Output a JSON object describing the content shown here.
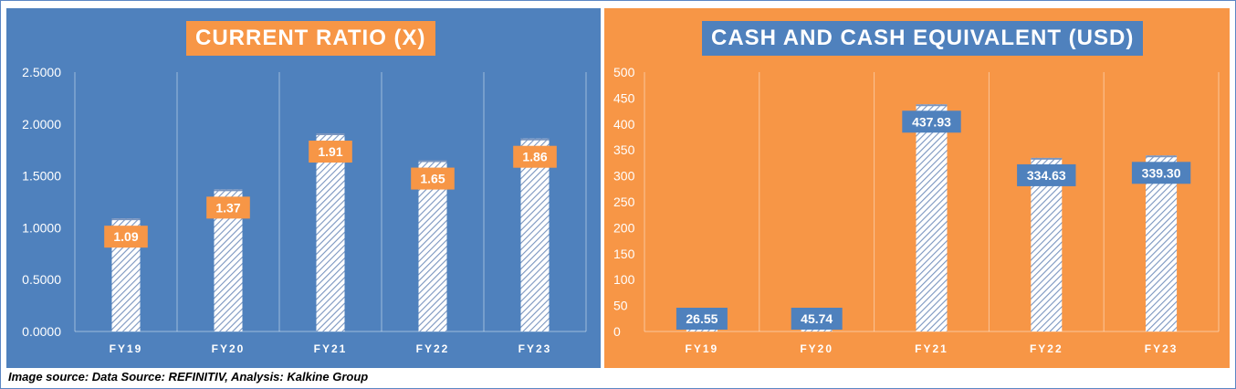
{
  "caption": "Image source: Data Source: REFINITIV, Analysis: Kalkine Group",
  "colors": {
    "blue": "#4f81bd",
    "orange": "#f79646",
    "bar_stripe": "#7a95bf",
    "label_text": "#ffffff"
  },
  "chart_data": [
    {
      "type": "bar",
      "title": "CURRENT RATIO (X)",
      "categories": [
        "FY19",
        "FY20",
        "FY21",
        "FY22",
        "FY23"
      ],
      "values": [
        1.09,
        1.37,
        1.91,
        1.65,
        1.86
      ],
      "value_labels": [
        "1.09",
        "1.37",
        "1.91",
        "1.65",
        "1.86"
      ],
      "ylim": [
        0,
        2.5
      ],
      "yticks": [
        "0.0000",
        "0.5000",
        "1.0000",
        "1.5000",
        "2.0000",
        "2.5000"
      ],
      "xlabel": "",
      "ylabel": "",
      "grid": "vertical separators"
    },
    {
      "type": "bar",
      "title": "CASH AND CASH EQUIVALENT (USD)",
      "categories": [
        "FY19",
        "FY20",
        "FY21",
        "FY22",
        "FY23"
      ],
      "values": [
        26.55,
        45.74,
        437.93,
        334.63,
        339.3
      ],
      "value_labels": [
        "26.55",
        "45.74",
        "437.93",
        "334.63",
        "339.30"
      ],
      "ylim": [
        0,
        500
      ],
      "yticks": [
        "0",
        "50",
        "100",
        "150",
        "200",
        "250",
        "300",
        "350",
        "400",
        "450",
        "500"
      ],
      "xlabel": "",
      "ylabel": "",
      "grid": "vertical separators"
    }
  ]
}
